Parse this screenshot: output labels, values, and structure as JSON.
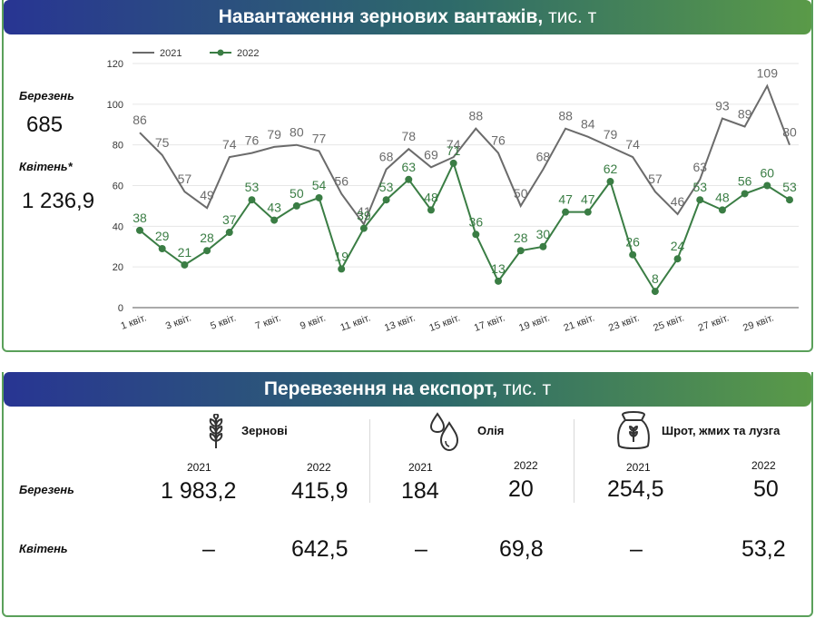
{
  "top_panel": {
    "title_bold": "Навантаження зернових вантажів,",
    "title_unit": "тис. т",
    "march_label": "Березень",
    "march_value": "685",
    "april_label": "Квітень*",
    "april_value": "1 236,9"
  },
  "chart_data": {
    "type": "line",
    "x": [
      1,
      2,
      3,
      4,
      5,
      6,
      7,
      8,
      9,
      10,
      11,
      12,
      13,
      14,
      15,
      16,
      17,
      18,
      19,
      20,
      21,
      22,
      23,
      24,
      25,
      26,
      27,
      28,
      29,
      30
    ],
    "tick_labels": [
      "1 квіт.",
      "3 квіт.",
      "5 квіт.",
      "7 квіт.",
      "9 квіт.",
      "11 квіт.",
      "13 квіт.",
      "15 квіт.",
      "17 квіт.",
      "19 квіт.",
      "21 квіт.",
      "23 квіт.",
      "25 квіт.",
      "27 квіт.",
      "29 квіт."
    ],
    "tick_positions": [
      1,
      3,
      5,
      7,
      9,
      11,
      13,
      15,
      17,
      19,
      21,
      23,
      25,
      27,
      29
    ],
    "ylim": [
      0,
      120
    ],
    "yticks": [
      0,
      20,
      40,
      60,
      80,
      100,
      120
    ],
    "grid": true,
    "legend": "top-left",
    "series": [
      {
        "name": "2021",
        "color": "#6b6b6b",
        "marker": false,
        "values": [
          86,
          75,
          57,
          49,
          74,
          76,
          79,
          80,
          77,
          56,
          41,
          68,
          78,
          69,
          74,
          88,
          76,
          50,
          68,
          88,
          84,
          79,
          74,
          57,
          46,
          63,
          93,
          89,
          109,
          80
        ]
      },
      {
        "name": "2022",
        "color": "#3a7d44",
        "marker": true,
        "values": [
          38,
          29,
          21,
          28,
          37,
          53,
          43,
          50,
          54,
          19,
          39,
          53,
          63,
          48,
          71,
          36,
          13,
          28,
          30,
          47,
          47,
          62,
          26,
          8,
          24,
          53,
          48,
          56,
          60,
          53
        ]
      }
    ]
  },
  "bottom_panel": {
    "title_bold": "Перевезення на експорт,",
    "title_unit": "тис. т",
    "row_march": "Березень",
    "row_april": "Квітень",
    "categories": [
      {
        "name": "Зернові",
        "icon": "wheat-icon",
        "y2021": "2021",
        "y2022": "2022",
        "march_2021": "1 983,2",
        "march_2022": "415,9",
        "april_2021": "–",
        "april_2022": "642,5"
      },
      {
        "name": "Олія",
        "icon": "oil-drops-icon",
        "y2021": "2021",
        "y2022": "2022",
        "march_2021": "184",
        "march_2022": "20",
        "april_2021": "–",
        "april_2022": "69,8"
      },
      {
        "name": "Шрот, жмих та лузга",
        "icon": "grain-sack-icon",
        "y2021": "2021",
        "y2022": "2022",
        "march_2021": "254,5",
        "march_2022": "50",
        "april_2021": "–",
        "april_2022": "53,2"
      }
    ]
  }
}
